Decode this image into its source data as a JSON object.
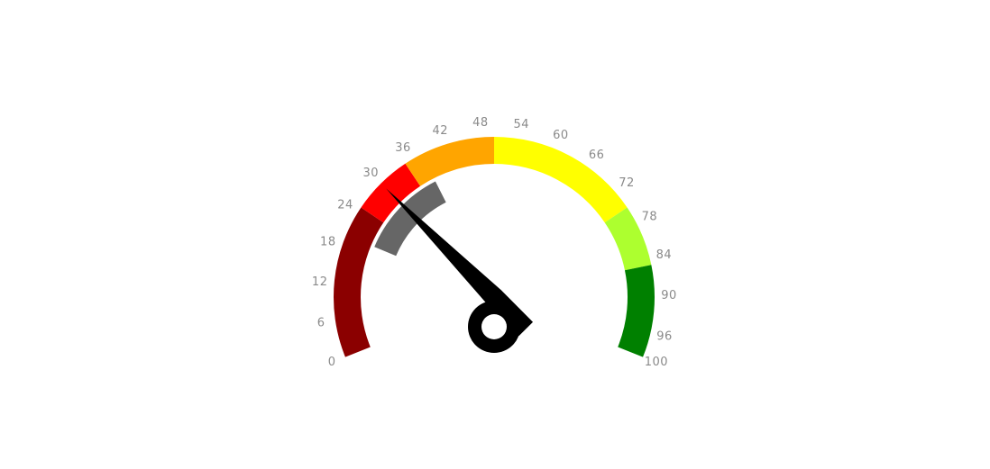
{
  "chart_data": {
    "type": "gauge",
    "min": 0,
    "max": 100,
    "value": 30,
    "tick_labels": [
      "0",
      "6",
      "12",
      "18",
      "24",
      "30",
      "36",
      "42",
      "48",
      "54",
      "60",
      "66",
      "72",
      "78",
      "84",
      "90",
      "96",
      "100"
    ],
    "tick_values": [
      0,
      6,
      12,
      18,
      24,
      30,
      36,
      42,
      48,
      54,
      60,
      66,
      72,
      78,
      84,
      90,
      96,
      100
    ],
    "bands": [
      {
        "from": 0,
        "to": 25,
        "color": "#8b0000"
      },
      {
        "from": 25,
        "to": 35,
        "color": "#ff0000"
      },
      {
        "from": 35,
        "to": 50,
        "color": "#ffa500"
      },
      {
        "from": 50,
        "to": 75,
        "color": "#ffff00"
      },
      {
        "from": 75,
        "to": 85,
        "color": "#adff2f"
      },
      {
        "from": 85,
        "to": 100,
        "color": "#008000"
      }
    ],
    "inner_band": {
      "from": 20,
      "to": 38,
      "color": "#666666"
    },
    "needle_color": "#000000"
  }
}
